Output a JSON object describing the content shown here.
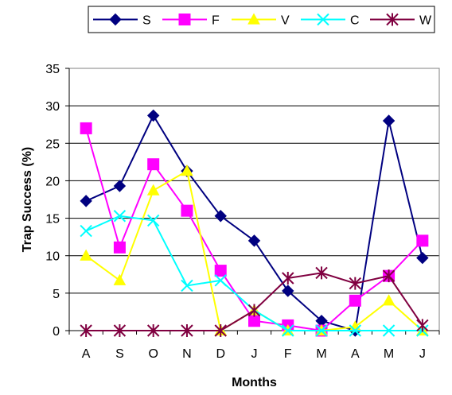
{
  "chart_data": {
    "type": "line",
    "title": "",
    "xlabel": "Months",
    "ylabel": "Trap Success (%)",
    "categories": [
      "A",
      "S",
      "O",
      "N",
      "D",
      "J",
      "F",
      "M",
      "A",
      "M",
      "J"
    ],
    "ylim": [
      0,
      35
    ],
    "yticks": [
      0,
      5,
      10,
      15,
      20,
      25,
      30,
      35
    ],
    "grid": "horizontal",
    "legend": "top",
    "series": [
      {
        "name": "S",
        "color": "#000080",
        "marker": "diamond",
        "values": [
          17.3,
          19.3,
          28.7,
          21.3,
          15.3,
          12.0,
          5.3,
          1.3,
          0.0,
          28.0,
          9.7
        ]
      },
      {
        "name": "F",
        "color": "#FF00FF",
        "marker": "square",
        "values": [
          27.0,
          11.1,
          22.2,
          16.0,
          8.0,
          1.3,
          0.7,
          0.0,
          4.0,
          7.3,
          12.0
        ]
      },
      {
        "name": "V",
        "color": "#FFFF00",
        "marker": "triangle",
        "values": [
          10.0,
          6.7,
          18.7,
          21.3,
          0.0,
          2.7,
          0.0,
          0.0,
          0.5,
          4.0,
          0.0
        ]
      },
      {
        "name": "C",
        "color": "#00FFFF",
        "marker": "x",
        "values": [
          13.3,
          15.3,
          14.7,
          6.0,
          6.7,
          2.7,
          0.0,
          0.0,
          0.0,
          0.0,
          0.0
        ]
      },
      {
        "name": "W",
        "color": "#800040",
        "marker": "star",
        "values": [
          0.0,
          0.0,
          0.0,
          0.0,
          0.0,
          2.7,
          7.0,
          7.7,
          6.3,
          7.3,
          0.7
        ]
      }
    ]
  }
}
